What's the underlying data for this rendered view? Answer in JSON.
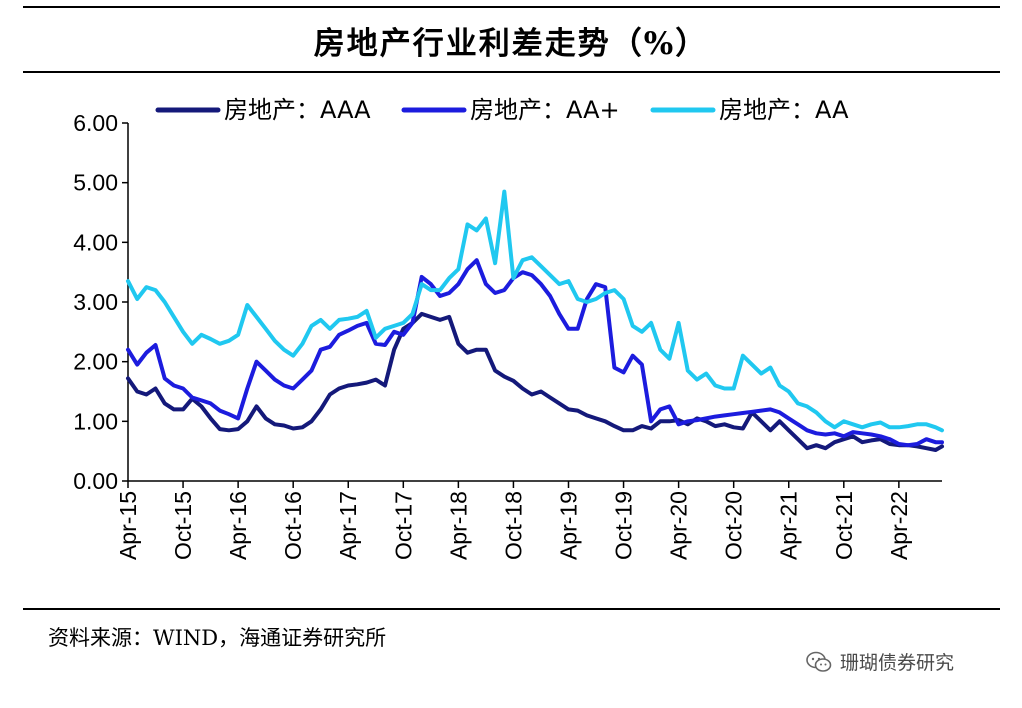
{
  "title": "房地产行业利差走势（%）",
  "source": "资料来源：WIND，海通证券研究所",
  "watermark": {
    "icon": "wechat-icon",
    "text": "珊瑚债券研究"
  },
  "chart_data": {
    "type": "line",
    "title": "房地产行业利差走势（%）",
    "xlabel": "",
    "ylabel": "",
    "ylim": [
      0,
      6
    ],
    "xlim": [
      0,
      88.7
    ],
    "grid": false,
    "legend": "top",
    "yticks": [
      "0.00",
      "1.00",
      "2.00",
      "3.00",
      "4.00",
      "5.00",
      "6.00"
    ],
    "xtick_labels": [
      "Apr-15",
      "Oct-15",
      "Apr-16",
      "Oct-16",
      "Apr-17",
      "Oct-17",
      "Apr-18",
      "Oct-18",
      "Apr-19",
      "Oct-19",
      "Apr-20",
      "Oct-20",
      "Apr-21",
      "Oct-21",
      "Apr-22"
    ],
    "xtick_months": [
      0,
      6,
      12,
      18,
      24,
      30,
      36,
      42,
      48,
      54,
      60,
      66,
      72,
      78,
      84
    ],
    "series": [
      {
        "name": "房地产：AAA",
        "color": "#14197a",
        "points": [
          [
            0,
            1.72
          ],
          [
            1,
            1.5
          ],
          [
            2,
            1.45
          ],
          [
            3,
            1.55
          ],
          [
            4,
            1.3
          ],
          [
            5,
            1.2
          ],
          [
            6,
            1.2
          ],
          [
            7,
            1.38
          ],
          [
            8,
            1.25
          ],
          [
            9,
            1.05
          ],
          [
            10,
            0.87
          ],
          [
            11,
            0.85
          ],
          [
            12,
            0.87
          ],
          [
            13,
            1.0
          ],
          [
            14,
            1.25
          ],
          [
            15,
            1.05
          ],
          [
            16,
            0.95
          ],
          [
            17,
            0.93
          ],
          [
            18,
            0.88
          ],
          [
            19,
            0.9
          ],
          [
            20,
            1.0
          ],
          [
            21,
            1.2
          ],
          [
            22,
            1.45
          ],
          [
            23,
            1.55
          ],
          [
            24,
            1.6
          ],
          [
            25,
            1.62
          ],
          [
            26,
            1.65
          ],
          [
            27,
            1.7
          ],
          [
            28,
            1.6
          ],
          [
            29,
            2.2
          ],
          [
            30,
            2.55
          ],
          [
            31,
            2.65
          ],
          [
            32,
            2.8
          ],
          [
            33,
            2.75
          ],
          [
            34,
            2.7
          ],
          [
            35,
            2.75
          ],
          [
            36,
            2.3
          ],
          [
            37,
            2.15
          ],
          [
            38,
            2.2
          ],
          [
            39,
            2.2
          ],
          [
            40,
            1.85
          ],
          [
            41,
            1.75
          ],
          [
            42,
            1.68
          ],
          [
            43,
            1.55
          ],
          [
            44,
            1.45
          ],
          [
            45,
            1.5
          ],
          [
            46,
            1.4
          ],
          [
            47,
            1.3
          ],
          [
            48,
            1.2
          ],
          [
            49,
            1.18
          ],
          [
            50,
            1.1
          ],
          [
            51,
            1.05
          ],
          [
            52,
            1.0
          ],
          [
            53,
            0.92
          ],
          [
            54,
            0.85
          ],
          [
            55,
            0.85
          ],
          [
            56,
            0.92
          ],
          [
            57,
            0.88
          ],
          [
            58,
            1.0
          ],
          [
            59,
            1.0
          ],
          [
            60,
            1.02
          ],
          [
            61,
            0.95
          ],
          [
            62,
            1.05
          ],
          [
            63,
            1.0
          ],
          [
            64,
            0.92
          ],
          [
            65,
            0.95
          ],
          [
            66,
            0.9
          ],
          [
            67,
            0.88
          ],
          [
            68,
            1.15
          ],
          [
            69,
            1.0
          ],
          [
            70,
            0.85
          ],
          [
            71,
            1.0
          ],
          [
            72,
            0.85
          ],
          [
            73,
            0.7
          ],
          [
            74,
            0.55
          ],
          [
            75,
            0.6
          ],
          [
            76,
            0.55
          ],
          [
            77,
            0.65
          ],
          [
            78,
            0.7
          ],
          [
            79,
            0.75
          ],
          [
            80,
            0.65
          ],
          [
            81,
            0.68
          ],
          [
            82,
            0.7
          ],
          [
            83,
            0.62
          ],
          [
            84,
            0.6
          ],
          [
            85,
            0.6
          ],
          [
            86,
            0.58
          ],
          [
            87,
            0.55
          ],
          [
            88,
            0.52
          ],
          [
            88.7,
            0.58
          ]
        ]
      },
      {
        "name": "房地产：AA+",
        "color": "#1c1cde",
        "points": [
          [
            0,
            2.2
          ],
          [
            1,
            1.95
          ],
          [
            2,
            2.15
          ],
          [
            3,
            2.28
          ],
          [
            4,
            1.72
          ],
          [
            5,
            1.6
          ],
          [
            6,
            1.55
          ],
          [
            7,
            1.4
          ],
          [
            8,
            1.35
          ],
          [
            9,
            1.3
          ],
          [
            10,
            1.18
          ],
          [
            11,
            1.12
          ],
          [
            12,
            1.05
          ],
          [
            13,
            1.55
          ],
          [
            14,
            2.0
          ],
          [
            15,
            1.85
          ],
          [
            16,
            1.7
          ],
          [
            17,
            1.6
          ],
          [
            18,
            1.55
          ],
          [
            19,
            1.7
          ],
          [
            20,
            1.85
          ],
          [
            21,
            2.2
          ],
          [
            22,
            2.25
          ],
          [
            23,
            2.45
          ],
          [
            24,
            2.52
          ],
          [
            25,
            2.6
          ],
          [
            26,
            2.65
          ],
          [
            27,
            2.3
          ],
          [
            28,
            2.28
          ],
          [
            29,
            2.5
          ],
          [
            30,
            2.45
          ],
          [
            31,
            2.65
          ],
          [
            32,
            3.42
          ],
          [
            33,
            3.3
          ],
          [
            34,
            3.1
          ],
          [
            35,
            3.15
          ],
          [
            36,
            3.3
          ],
          [
            37,
            3.55
          ],
          [
            38,
            3.7
          ],
          [
            39,
            3.3
          ],
          [
            40,
            3.15
          ],
          [
            41,
            3.2
          ],
          [
            42,
            3.4
          ],
          [
            43,
            3.5
          ],
          [
            44,
            3.45
          ],
          [
            45,
            3.3
          ],
          [
            46,
            3.1
          ],
          [
            47,
            2.8
          ],
          [
            48,
            2.55
          ],
          [
            49,
            2.55
          ],
          [
            50,
            3.05
          ],
          [
            51,
            3.3
          ],
          [
            52,
            3.25
          ],
          [
            53,
            1.9
          ],
          [
            54,
            1.82
          ],
          [
            55,
            2.1
          ],
          [
            56,
            1.95
          ],
          [
            57,
            1.0
          ],
          [
            58,
            1.2
          ],
          [
            59,
            1.25
          ],
          [
            60,
            0.95
          ],
          [
            61,
            1.0
          ],
          [
            62,
            1.02
          ],
          [
            63,
            1.05
          ],
          [
            64,
            1.08
          ],
          [
            65,
            1.1
          ],
          [
            66,
            1.12
          ],
          [
            67,
            1.14
          ],
          [
            68,
            1.16
          ],
          [
            69,
            1.18
          ],
          [
            70,
            1.2
          ],
          [
            71,
            1.15
          ],
          [
            72,
            1.05
          ],
          [
            73,
            0.95
          ],
          [
            74,
            0.85
          ],
          [
            75,
            0.8
          ],
          [
            76,
            0.78
          ],
          [
            77,
            0.8
          ],
          [
            78,
            0.75
          ],
          [
            79,
            0.82
          ],
          [
            80,
            0.8
          ],
          [
            81,
            0.78
          ],
          [
            82,
            0.75
          ],
          [
            83,
            0.7
          ],
          [
            84,
            0.62
          ],
          [
            85,
            0.6
          ],
          [
            86,
            0.62
          ],
          [
            87,
            0.7
          ],
          [
            88,
            0.65
          ],
          [
            88.7,
            0.65
          ]
        ]
      },
      {
        "name": "房地产：AA",
        "color": "#20c8f0",
        "points": [
          [
            0,
            3.35
          ],
          [
            1,
            3.05
          ],
          [
            2,
            3.25
          ],
          [
            3,
            3.2
          ],
          [
            4,
            3.0
          ],
          [
            5,
            2.75
          ],
          [
            6,
            2.5
          ],
          [
            7,
            2.3
          ],
          [
            8,
            2.45
          ],
          [
            9,
            2.38
          ],
          [
            10,
            2.3
          ],
          [
            11,
            2.35
          ],
          [
            12,
            2.45
          ],
          [
            13,
            2.95
          ],
          [
            14,
            2.75
          ],
          [
            15,
            2.55
          ],
          [
            16,
            2.35
          ],
          [
            17,
            2.2
          ],
          [
            18,
            2.1
          ],
          [
            19,
            2.3
          ],
          [
            20,
            2.6
          ],
          [
            21,
            2.7
          ],
          [
            22,
            2.55
          ],
          [
            23,
            2.7
          ],
          [
            24,
            2.72
          ],
          [
            25,
            2.75
          ],
          [
            26,
            2.85
          ],
          [
            27,
            2.4
          ],
          [
            28,
            2.55
          ],
          [
            29,
            2.6
          ],
          [
            30,
            2.65
          ],
          [
            31,
            2.8
          ],
          [
            32,
            3.3
          ],
          [
            33,
            3.2
          ],
          [
            34,
            3.2
          ],
          [
            35,
            3.4
          ],
          [
            36,
            3.55
          ],
          [
            37,
            4.3
          ],
          [
            38,
            4.2
          ],
          [
            39,
            4.4
          ],
          [
            40,
            3.65
          ],
          [
            41,
            4.85
          ],
          [
            42,
            3.4
          ],
          [
            43,
            3.7
          ],
          [
            44,
            3.75
          ],
          [
            45,
            3.6
          ],
          [
            46,
            3.45
          ],
          [
            47,
            3.3
          ],
          [
            48,
            3.35
          ],
          [
            49,
            3.05
          ],
          [
            50,
            3.0
          ],
          [
            51,
            3.05
          ],
          [
            52,
            3.15
          ],
          [
            53,
            3.2
          ],
          [
            54,
            3.05
          ],
          [
            55,
            2.6
          ],
          [
            56,
            2.5
          ],
          [
            57,
            2.65
          ],
          [
            58,
            2.2
          ],
          [
            59,
            2.05
          ],
          [
            60,
            2.65
          ],
          [
            61,
            1.85
          ],
          [
            62,
            1.7
          ],
          [
            63,
            1.8
          ],
          [
            64,
            1.6
          ],
          [
            65,
            1.55
          ],
          [
            66,
            1.55
          ],
          [
            67,
            2.1
          ],
          [
            68,
            1.95
          ],
          [
            69,
            1.8
          ],
          [
            70,
            1.9
          ],
          [
            71,
            1.6
          ],
          [
            72,
            1.5
          ],
          [
            73,
            1.3
          ],
          [
            74,
            1.25
          ],
          [
            75,
            1.15
          ],
          [
            76,
            1.0
          ],
          [
            77,
            0.9
          ],
          [
            78,
            1.0
          ],
          [
            79,
            0.95
          ],
          [
            80,
            0.9
          ],
          [
            81,
            0.95
          ],
          [
            82,
            0.98
          ],
          [
            83,
            0.9
          ],
          [
            84,
            0.9
          ],
          [
            85,
            0.92
          ],
          [
            86,
            0.95
          ],
          [
            87,
            0.95
          ],
          [
            88,
            0.9
          ],
          [
            88.7,
            0.85
          ]
        ]
      }
    ]
  }
}
